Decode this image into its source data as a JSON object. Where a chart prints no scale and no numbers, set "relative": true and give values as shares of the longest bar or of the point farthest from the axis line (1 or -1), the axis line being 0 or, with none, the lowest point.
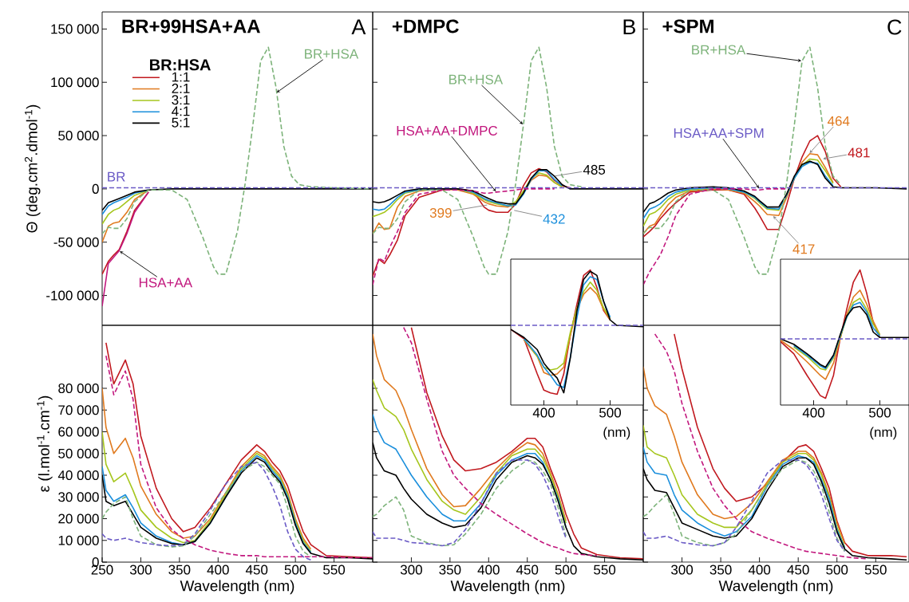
{
  "chart_data": [
    {
      "type": "line",
      "title": "BR+99HSA+AA",
      "ylabel": "Θ (deg.cm$^{2}$.dmol$^{-1}$)",
      "x": [
        250,
        258,
        265,
        272,
        282,
        292,
        310,
        340,
        360,
        380,
        394,
        400,
        410,
        425,
        435,
        445,
        455,
        465,
        475,
        485,
        495,
        505,
        520,
        550,
        600
      ],
      "xlim": [
        250,
        600
      ],
      "ylim": [
        -128000,
        166000
      ],
      "yticks": [
        {
          "value": -100000,
          "label": "-100 000"
        },
        {
          "value": -50000,
          "label": "-50 000"
        },
        0,
        {
          "value": 50000,
          "label": "50 000"
        },
        {
          "value": 100000,
          "label": "100 000"
        },
        {
          "value": 150000,
          "label": "150 000"
        }
      ],
      "tick_labels": "y",
      "legend": "top left",
      "legend_title": "BR:HSA",
      "line_style": "solid",
      "annotations": [
        "A",
        {
          "text": "BR",
          "x": 262,
          "y": 1000
        },
        {
          "text": "BR+HSA",
          "x": 475,
          "y": 90000
        },
        {
          "text": "HSA+AA",
          "x": 272,
          "y": -58000
        }
      ],
      "series": [
        {
          "name": "1:1",
          "color": "#c1191f",
          "values": [
            -80000,
            -68000,
            -62000,
            -57000,
            -40000,
            -20000,
            -3000,
            null,
            null,
            null,
            null,
            null,
            null,
            null,
            null,
            null,
            null,
            null,
            null,
            null,
            null,
            null,
            null,
            null,
            null
          ]
        },
        {
          "name": "2:1",
          "color": "#e07a1f",
          "values": [
            -50000,
            -35000,
            -32000,
            -31000,
            -22000,
            -10000,
            -1000,
            null,
            null,
            null,
            null,
            null,
            null,
            null,
            null,
            null,
            null,
            null,
            null,
            null,
            null,
            null,
            null,
            null,
            null
          ]
        },
        {
          "name": "3:1",
          "color": "#a6c61e",
          "values": [
            -33000,
            -24000,
            -20000,
            -18000,
            -12000,
            -6000,
            -1000,
            null,
            null,
            null,
            null,
            null,
            null,
            null,
            null,
            null,
            null,
            null,
            null,
            null,
            null,
            null,
            null,
            null,
            null
          ]
        },
        {
          "name": "4:1",
          "color": "#1b8fdc",
          "values": [
            -24000,
            -16000,
            -13000,
            -11000,
            -8000,
            -4000,
            -1000,
            null,
            null,
            null,
            null,
            null,
            null,
            null,
            null,
            null,
            null,
            null,
            null,
            null,
            null,
            null,
            null,
            null,
            null
          ]
        },
        {
          "name": "5:1",
          "color": "#000000",
          "values": [
            -20000,
            -13000,
            -11000,
            -9000,
            -6000,
            -3000,
            -1000,
            0,
            0,
            0,
            0,
            0,
            0,
            0,
            0,
            0,
            0,
            0,
            0,
            0,
            0,
            0,
            0,
            0,
            0
          ]
        },
        {
          "color": "#7db37a",
          "line_style": "dashed",
          "values": [
            -42000,
            -36000,
            -37000,
            -37000,
            -28000,
            -12000,
            -1000,
            -1000,
            -10000,
            -45000,
            -73000,
            -80000,
            -80000,
            -40000,
            5000,
            60000,
            120000,
            133000,
            95000,
            40000,
            12000,
            4000,
            2000,
            1000,
            0
          ]
        },
        {
          "color": "#6b5bc6",
          "line_style": "dashed",
          "values": [
            1000,
            1000,
            1000,
            1000,
            1000,
            1000,
            1000,
            1000,
            1000,
            1000,
            1000,
            1000,
            1000,
            1000,
            1000,
            1000,
            1000,
            1000,
            1000,
            1000,
            1000,
            1000,
            1000,
            1000,
            1000
          ]
        },
        {
          "color": "#c2187e",
          "values": [
            -110000,
            -70000,
            -64000,
            -58000,
            -42000,
            -22000,
            -3000,
            null,
            null,
            null,
            null,
            null,
            null,
            null,
            null,
            null,
            null,
            null,
            null,
            null,
            null,
            null,
            null,
            null,
            null
          ]
        }
      ]
    },
    {
      "type": "line",
      "title": "+DMPC",
      "x": [
        250,
        258,
        265,
        272,
        282,
        292,
        310,
        340,
        360,
        380,
        394,
        400,
        410,
        425,
        435,
        445,
        455,
        465,
        475,
        485,
        495,
        505,
        520,
        550,
        600
      ],
      "xlim": [
        250,
        600
      ],
      "ylim": [
        -128000,
        166000
      ],
      "yticks": [
        -100000,
        -50000,
        0,
        50000,
        100000,
        150000
      ],
      "tick_labels": false,
      "line_style": "solid",
      "annotations": [
        "B",
        {
          "text": "BR+HSA",
          "x": 445,
          "y": 60000
        },
        {
          "text": "HSA+AA+DMPC",
          "x": 410,
          "y": -3000
        },
        {
          "text": "399",
          "x": 399,
          "y": -15000
        },
        {
          "text": "432",
          "x": 432,
          "y": -20000
        },
        {
          "text": "485",
          "x": 485,
          "y": 12000
        }
      ],
      "series": [
        {
          "color": "#c1191f",
          "values": [
            -82000,
            -66000,
            -70000,
            -62000,
            -48000,
            -25000,
            -8000,
            -1000,
            0,
            -2000,
            -17000,
            -20000,
            -22000,
            -22000,
            -14000,
            3000,
            15000,
            19000,
            16000,
            8000,
            3000,
            1000,
            null,
            null,
            null
          ]
        },
        {
          "color": "#e07a1f",
          "values": [
            -42000,
            -32000,
            -38000,
            -37000,
            -17000,
            -7000,
            -2000,
            0,
            -1000,
            -5000,
            -12000,
            -14000,
            -16000,
            -17000,
            -14000,
            -4000,
            8000,
            13000,
            12000,
            6000,
            2000,
            null,
            null,
            null,
            null
          ]
        },
        {
          "color": "#a6c61e",
          "values": [
            -26000,
            -24000,
            -22000,
            -18000,
            -10000,
            -4000,
            -1000,
            0,
            0,
            -4000,
            -10000,
            -12000,
            -14000,
            -16000,
            -12000,
            -2000,
            10000,
            15000,
            13000,
            6000,
            2000,
            null,
            null,
            null,
            null
          ]
        },
        {
          "color": "#1b8fdc",
          "values": [
            -19000,
            -20000,
            -19000,
            -15000,
            -8000,
            -3000,
            -1000,
            0,
            0,
            -3000,
            -9000,
            -11000,
            -13000,
            -16000,
            -15000,
            -5000,
            9000,
            17000,
            17000,
            9000,
            3000,
            null,
            null,
            null,
            null
          ]
        },
        {
          "color": "#000000",
          "values": [
            -12000,
            -13000,
            -12000,
            -10000,
            -6000,
            -2000,
            0,
            0,
            0,
            -2000,
            -7000,
            -9000,
            -12000,
            -14000,
            -14000,
            -4000,
            10000,
            18000,
            18000,
            12000,
            4000,
            0,
            0,
            0,
            0
          ]
        },
        {
          "color": "#7db37a",
          "line_style": "dashed",
          "values": [
            -42000,
            -36000,
            -37000,
            -37000,
            -28000,
            -12000,
            -1000,
            -1000,
            -10000,
            -45000,
            -73000,
            -80000,
            -80000,
            -40000,
            5000,
            60000,
            120000,
            133000,
            95000,
            40000,
            12000,
            4000,
            2000,
            null,
            null
          ]
        },
        {
          "color": "#6b5bc6",
          "line_style": "dashed",
          "values": [
            1000,
            1000,
            1000,
            1000,
            1000,
            1000,
            1000,
            1000,
            1000,
            1000,
            1000,
            1000,
            1000,
            1000,
            1000,
            1000,
            1000,
            1000,
            1000,
            1000,
            1000,
            1000,
            1000,
            1000,
            1000
          ]
        },
        {
          "color": "#c2187e",
          "line_style": "dashed",
          "values": [
            -90000,
            -65000,
            -68000,
            -55000,
            -40000,
            -22000,
            -5000,
            -1000,
            -1000,
            -2000,
            -4000,
            -4000,
            -3000,
            -2000,
            -1000,
            0,
            0,
            0,
            0,
            0,
            null,
            null,
            null,
            null,
            null
          ]
        }
      ]
    },
    {
      "type": "line",
      "title": "+SPM",
      "x": [
        250,
        258,
        265,
        272,
        282,
        292,
        310,
        340,
        360,
        380,
        394,
        400,
        410,
        425,
        435,
        445,
        455,
        465,
        475,
        485,
        495,
        505,
        520,
        550,
        590
      ],
      "xlim": [
        250,
        593
      ],
      "ylim": [
        -128000,
        166000
      ],
      "yticks": [
        -100000,
        -50000,
        0,
        50000,
        100000,
        150000
      ],
      "tick_labels": false,
      "line_style": "solid",
      "annotations": [
        "C",
        {
          "text": "BR+HSA",
          "x": 455,
          "y": 120000
        },
        {
          "text": "HSA+AA+SPM",
          "x": 400,
          "y": 0
        },
        {
          "text": "464",
          "x": 464,
          "y": 33000
        },
        {
          "text": "481",
          "x": 481,
          "y": 28000
        },
        {
          "text": "417",
          "x": 417,
          "y": -25000
        }
      ],
      "series": [
        {
          "color": "#c1191f",
          "values": [
            -45000,
            -40000,
            -35000,
            -28000,
            -20000,
            -13000,
            -3000,
            -1000,
            -1000,
            -5000,
            -18000,
            -25000,
            -38000,
            -38000,
            -15000,
            10000,
            30000,
            45000,
            50000,
            35000,
            10000,
            2000,
            null,
            null,
            null
          ]
        },
        {
          "color": "#e07a1f",
          "values": [
            -42000,
            -35000,
            -33000,
            -25000,
            -15000,
            -8000,
            -2000,
            0,
            -1000,
            -4000,
            -12000,
            -16000,
            -24000,
            -25000,
            -8000,
            10000,
            25000,
            33000,
            32000,
            20000,
            6000,
            null,
            null,
            null,
            null
          ]
        },
        {
          "color": "#a6c61e",
          "values": [
            -35000,
            -24000,
            -22000,
            -18000,
            -10000,
            -5000,
            -1000,
            1000,
            0,
            -3000,
            -9000,
            -13000,
            -19000,
            -20000,
            -6000,
            10000,
            22000,
            28000,
            27000,
            17000,
            5000,
            null,
            null,
            null,
            null
          ]
        },
        {
          "color": "#1b8fdc",
          "values": [
            -28000,
            -19000,
            -17000,
            -14000,
            -7000,
            -3000,
            0,
            1000,
            0,
            -3000,
            -8000,
            -12000,
            -18000,
            -19000,
            -6000,
            10000,
            21000,
            25000,
            24000,
            12000,
            3000,
            null,
            null,
            null,
            null
          ]
        },
        {
          "color": "#000000",
          "values": [
            -22000,
            -14000,
            -12000,
            -9000,
            -4000,
            -1000,
            1000,
            2000,
            1000,
            -2000,
            -7000,
            -11000,
            -17000,
            -17000,
            -5000,
            12000,
            23000,
            26000,
            23000,
            10000,
            2000,
            1000,
            1000,
            1000,
            0
          ]
        },
        {
          "color": "#7db37a",
          "line_style": "dashed",
          "values": [
            -42000,
            -36000,
            -37000,
            -37000,
            -28000,
            -12000,
            -1000,
            -1000,
            -10000,
            -45000,
            -73000,
            -80000,
            -80000,
            -40000,
            5000,
            60000,
            120000,
            133000,
            95000,
            40000,
            12000,
            4000,
            null,
            null,
            null
          ]
        },
        {
          "color": "#6b5bc6",
          "line_style": "dashed",
          "values": [
            1000,
            1000,
            1000,
            1000,
            1000,
            1000,
            1000,
            1000,
            1000,
            1000,
            1000,
            1000,
            1000,
            1000,
            1000,
            1000,
            1000,
            1000,
            1000,
            1000,
            1000,
            1000,
            1000,
            1000,
            1000
          ]
        },
        {
          "color": "#c2187e",
          "line_style": "dashed",
          "values": [
            -90000,
            -78000,
            -70000,
            -62000,
            -45000,
            -25000,
            -5000,
            0,
            0,
            0,
            -1000,
            -1000,
            0,
            0,
            0,
            null,
            null,
            null,
            null,
            null,
            null,
            null,
            null,
            null,
            null
          ]
        }
      ]
    },
    {
      "type": "line",
      "xlabel": "Wavelength (nm)",
      "ylabel": "ε (l.mol$^{-1}$.cm$^{-1}$)",
      "x": [
        250,
        255,
        265,
        280,
        290,
        300,
        320,
        340,
        355,
        370,
        390,
        410,
        430,
        450,
        460,
        470,
        480,
        490,
        500,
        510,
        520,
        540,
        570,
        600
      ],
      "xlim": [
        250,
        600
      ],
      "ylim": [
        0,
        109000
      ],
      "xticks": [
        250,
        300,
        350,
        400,
        450,
        500,
        550
      ],
      "yticks": [
        0,
        {
          "value": 10000,
          "label": "10 000"
        },
        {
          "value": 20000,
          "label": "20 000"
        },
        {
          "value": 30000,
          "label": "30 000"
        },
        {
          "value": 40000,
          "label": "40 000"
        },
        {
          "value": 50000,
          "label": "50 000"
        },
        {
          "value": 60000,
          "label": "60 000"
        },
        {
          "value": 70000,
          "label": "70 000"
        },
        {
          "value": 80000,
          "label": "80 000"
        }
      ],
      "line_style": "solid",
      "series": [
        {
          "color": "#c1191f",
          "values": [
            null,
            101000,
            82000,
            93000,
            82000,
            58000,
            34000,
            20000,
            14000,
            16000,
            25000,
            36000,
            47000,
            54000,
            51000,
            46000,
            42000,
            35000,
            24000,
            14000,
            8000,
            3000,
            2500,
            2000
          ]
        },
        {
          "color": "#e07a1f",
          "values": [
            80000,
            62000,
            50000,
            57000,
            48000,
            35000,
            22000,
            14000,
            11000,
            12000,
            20000,
            32000,
            44000,
            51000,
            49000,
            44000,
            40000,
            32000,
            20000,
            11000,
            6000,
            null,
            null,
            null
          ]
        },
        {
          "color": "#a6c61e",
          "values": [
            60000,
            45000,
            37000,
            41000,
            33000,
            24000,
            16000,
            11000,
            9000,
            10000,
            19000,
            31000,
            43000,
            50000,
            48000,
            43000,
            39000,
            31000,
            19000,
            10000,
            5000,
            null,
            null,
            null
          ]
        },
        {
          "color": "#1b8fdc",
          "values": [
            44000,
            33000,
            28000,
            31000,
            25000,
            18000,
            12000,
            9000,
            8000,
            9500,
            18000,
            30000,
            42000,
            49000,
            47000,
            42000,
            38000,
            30000,
            18000,
            9000,
            4500,
            null,
            null,
            null
          ]
        },
        {
          "color": "#000000",
          "values": [
            40000,
            28000,
            26000,
            28000,
            22000,
            16000,
            11000,
            8500,
            8000,
            9500,
            18000,
            30000,
            41000,
            48000,
            46000,
            41000,
            37000,
            29000,
            17000,
            8500,
            4000,
            2000,
            2000,
            1500
          ]
        },
        {
          "color": "#7db37a",
          "line_style": "dashed",
          "values": [
            20000,
            23000,
            27000,
            30000,
            20000,
            12000,
            8000,
            7000,
            7500,
            12000,
            22000,
            32000,
            42000,
            46000,
            44000,
            40000,
            36000,
            25000,
            12000,
            5000,
            2500,
            null,
            null,
            null
          ]
        },
        {
          "color": "#6b5bc6",
          "line_style": "dashed",
          "values": [
            13000,
            11000,
            10000,
            11000,
            10000,
            9000,
            8000,
            7500,
            8000,
            13000,
            24000,
            36000,
            44000,
            46000,
            42000,
            35000,
            26000,
            14000,
            6000,
            2500,
            1000,
            null,
            null,
            null
          ]
        },
        {
          "color": "#c2187e",
          "line_style": "dashed",
          "values": [
            null,
            95000,
            77000,
            88000,
            75000,
            45000,
            25000,
            15000,
            11000,
            8000,
            5500,
            4000,
            3000,
            3000,
            2500,
            2500,
            2500,
            2500,
            2500,
            2500,
            2500,
            2500,
            2000,
            2000
          ]
        }
      ]
    },
    {
      "type": "line",
      "xlabel": "Wavelength (nm)",
      "x": [
        250,
        255,
        265,
        280,
        290,
        300,
        320,
        340,
        355,
        370,
        390,
        410,
        430,
        450,
        460,
        470,
        480,
        490,
        500,
        510,
        520,
        540,
        570,
        600
      ],
      "xlim": [
        250,
        600
      ],
      "ylim": [
        0,
        109000
      ],
      "xticks": [
        300,
        350,
        400,
        450,
        500,
        550
      ],
      "yticks": [
        0,
        10000,
        20000,
        30000,
        40000,
        50000,
        60000,
        70000,
        80000
      ],
      "tick_labels": "x",
      "line_style": "solid",
      "series": [
        {
          "color": "#c1191f",
          "values": [
            null,
            null,
            null,
            null,
            null,
            108000,
            78000,
            58000,
            47000,
            42000,
            43000,
            46000,
            51000,
            57000,
            57000,
            53000,
            43000,
            34000,
            22000,
            13000,
            6500,
            3500,
            2000,
            1500
          ]
        },
        {
          "color": "#e07a1f",
          "values": [
            105000,
            95000,
            84000,
            79000,
            71000,
            61000,
            43000,
            31000,
            25500,
            26000,
            34000,
            43000,
            50000,
            55000,
            54000,
            50000,
            41000,
            31000,
            19000,
            null,
            null,
            null,
            null,
            null
          ]
        },
        {
          "color": "#a6c61e",
          "values": [
            84000,
            79000,
            71000,
            67000,
            61000,
            52000,
            38000,
            28000,
            24000,
            22000,
            30000,
            41000,
            49000,
            52000,
            52000,
            48000,
            40000,
            30000,
            18000,
            null,
            null,
            null,
            null,
            null
          ]
        },
        {
          "color": "#1b8fdc",
          "values": [
            68000,
            62000,
            55000,
            52000,
            46000,
            40000,
            30000,
            22000,
            19000,
            19000,
            27000,
            40000,
            47000,
            50000,
            50000,
            46000,
            38000,
            29000,
            16000,
            null,
            null,
            null,
            null,
            null
          ]
        },
        {
          "color": "#000000",
          "values": [
            55000,
            48000,
            42000,
            40000,
            34000,
            29000,
            22000,
            18000,
            16000,
            17000,
            25000,
            38000,
            46000,
            49000,
            48000,
            45000,
            38000,
            28000,
            16000,
            7500,
            4000,
            2500,
            1500,
            1000
          ]
        },
        {
          "color": "#7db37a",
          "line_style": "dashed",
          "values": [
            21000,
            22000,
            26000,
            30000,
            24000,
            12000,
            9000,
            7500,
            8000,
            13000,
            22000,
            34000,
            42000,
            47000,
            46000,
            42000,
            36000,
            25000,
            12000,
            null,
            null,
            null,
            null,
            null
          ]
        },
        {
          "color": "#6b5bc6",
          "line_style": "dashed",
          "values": [
            14000,
            11000,
            11000,
            11000,
            10000,
            9000,
            8500,
            7500,
            9000,
            15000,
            27000,
            41000,
            47000,
            47000,
            45000,
            40000,
            32000,
            21000,
            11000,
            null,
            null,
            null,
            null,
            null
          ]
        },
        {
          "color": "#c2187e",
          "line_style": "dashed",
          "values": [
            null,
            null,
            null,
            null,
            108000,
            101000,
            75000,
            51000,
            40000,
            34000,
            27000,
            22000,
            17500,
            13000,
            11000,
            9000,
            7500,
            6500,
            5000,
            4000,
            3500,
            3000,
            null,
            null
          ]
        }
      ]
    },
    {
      "type": "line",
      "xlabel": "Wavelength (nm)",
      "x": [
        250,
        255,
        265,
        280,
        290,
        300,
        320,
        340,
        355,
        370,
        390,
        410,
        430,
        450,
        460,
        470,
        480,
        490,
        500,
        510,
        520,
        540,
        570,
        590
      ],
      "xlim": [
        250,
        593
      ],
      "ylim": [
        0,
        109000
      ],
      "xticks": [
        300,
        350,
        400,
        450,
        500,
        550
      ],
      "yticks": [
        0,
        10000,
        20000,
        30000,
        40000,
        50000,
        60000,
        70000,
        80000
      ],
      "tick_labels": "x",
      "line_style": "solid",
      "series": [
        {
          "color": "#c1191f",
          "values": [
            null,
            null,
            null,
            null,
            105000,
            89000,
            62000,
            43000,
            34000,
            28000,
            30000,
            36000,
            46000,
            53000,
            54000,
            51000,
            43000,
            34000,
            19000,
            9000,
            5000,
            3000,
            3000,
            2500
          ]
        },
        {
          "color": "#e07a1f",
          "values": [
            90000,
            80000,
            72000,
            68000,
            58000,
            46000,
            31000,
            22000,
            20000,
            21000,
            27000,
            37000,
            47000,
            51000,
            51000,
            48000,
            41000,
            31000,
            18000,
            8500,
            null,
            null,
            null,
            null
          ]
        },
        {
          "color": "#a6c61e",
          "values": [
            63000,
            53000,
            50000,
            48000,
            40000,
            31000,
            22000,
            18000,
            16000,
            16000,
            24000,
            36000,
            46000,
            50000,
            50000,
            47000,
            40000,
            30000,
            16000,
            7000,
            null,
            null,
            null,
            null
          ]
        },
        {
          "color": "#1b8fdc",
          "values": [
            53000,
            46000,
            41000,
            40000,
            31000,
            24000,
            18000,
            14000,
            12000,
            14000,
            21000,
            35000,
            45000,
            49000,
            48000,
            46000,
            38000,
            29000,
            15000,
            6500,
            null,
            null,
            null,
            null
          ]
        },
        {
          "color": "#000000",
          "values": [
            43000,
            38000,
            33000,
            32000,
            25000,
            18000,
            15000,
            12000,
            11000,
            12000,
            20000,
            33000,
            44000,
            48000,
            48000,
            45000,
            37000,
            27000,
            14000,
            6000,
            3000,
            2000,
            1500,
            1000
          ]
        },
        {
          "color": "#7db37a",
          "line_style": "dashed",
          "values": [
            21000,
            22000,
            26000,
            31000,
            22000,
            12000,
            9000,
            7500,
            9000,
            13000,
            24000,
            35000,
            43000,
            47000,
            46000,
            42000,
            35000,
            23000,
            11000,
            5000,
            null,
            null,
            null,
            null
          ]
        },
        {
          "color": "#6b5bc6",
          "line_style": "dashed",
          "values": [
            14000,
            11000,
            11000,
            12000,
            10500,
            9000,
            8000,
            7500,
            9000,
            16000,
            28000,
            41000,
            47000,
            47000,
            45000,
            40000,
            31000,
            20000,
            10000,
            5000,
            null,
            null,
            null,
            null
          ]
        },
        {
          "color": "#c2187e",
          "line_style": "dashed",
          "values": [
            null,
            null,
            105000,
            97000,
            88000,
            73000,
            51000,
            34000,
            26000,
            20000,
            14000,
            11000,
            8500,
            6000,
            5000,
            4500,
            4000,
            3500,
            3000,
            2500,
            2000,
            1500,
            null,
            null
          ]
        }
      ]
    },
    {
      "type": "line",
      "relative": true,
      "xlabel": "(nm)",
      "x": [
        350,
        370,
        390,
        400,
        410,
        420,
        430,
        440,
        450,
        460,
        470,
        480,
        490,
        500,
        510,
        550
      ],
      "xlim": [
        350,
        550
      ],
      "xticks": [
        400,
        {
          "value": 450,
          "label": null
        },
        500
      ],
      "tick_labels": "x",
      "line_style": "solid",
      "series": [
        {
          "color": "#c1191f",
          "values": [
            0.56,
            0.49,
            0.23,
            0.11,
            0.09,
            0.08,
            0.23,
            0.52,
            0.75,
            0.96,
            1.0,
            0.87,
            0.7,
            0.63,
            null,
            null
          ]
        },
        {
          "color": "#e07a1f",
          "values": [
            null,
            0.48,
            0.36,
            0.24,
            0.22,
            0.23,
            0.28,
            0.52,
            0.71,
            0.82,
            0.87,
            0.82,
            0.71,
            0.63,
            null,
            null
          ]
        },
        {
          "color": "#a6c61e",
          "values": [
            null,
            0.49,
            0.36,
            0.28,
            0.26,
            0.27,
            0.31,
            0.54,
            0.72,
            0.84,
            0.91,
            0.85,
            0.72,
            0.64,
            null,
            null
          ]
        },
        {
          "color": "#1b8fdc",
          "values": [
            null,
            0.49,
            0.37,
            0.28,
            0.22,
            0.15,
            0.13,
            0.36,
            0.65,
            0.89,
            0.95,
            0.93,
            0.77,
            0.65,
            null,
            null
          ]
        },
        {
          "color": "#000000",
          "values": [
            0.56,
            0.5,
            0.41,
            0.31,
            0.25,
            0.2,
            0.09,
            0.35,
            0.7,
            0.93,
            0.99,
            0.96,
            0.77,
            0.63,
            0.59,
            0.58
          ]
        },
        {
          "color": "#6b5bc6",
          "line_style": "dashed",
          "values": [
            0.59,
            0.59,
            0.59,
            0.59,
            0.59,
            0.59,
            0.59,
            0.59,
            0.59,
            0.59,
            0.59,
            0.59,
            0.59,
            0.59,
            0.59,
            0.59
          ]
        }
      ]
    },
    {
      "type": "line",
      "relative": true,
      "xlabel": "(nm)",
      "x": [
        350,
        370,
        390,
        410,
        418,
        430,
        440,
        450,
        460,
        470,
        480,
        490,
        500,
        510,
        544
      ],
      "xlim": [
        350,
        544
      ],
      "xticks": [
        400,
        {
          "value": 450,
          "label": null
        },
        500
      ],
      "tick_labels": "x",
      "line_style": "solid",
      "series": [
        {
          "color": "#c1191f",
          "values": [
            0.47,
            0.38,
            0.22,
            0.07,
            0.05,
            0.22,
            0.49,
            0.71,
            0.91,
            1.0,
            0.83,
            0.61,
            0.5,
            null,
            null
          ]
        },
        {
          "color": "#e07a1f",
          "values": [
            0.48,
            0.41,
            0.32,
            0.22,
            0.19,
            0.31,
            0.49,
            0.67,
            0.8,
            0.85,
            0.75,
            0.62,
            0.52,
            null,
            null
          ]
        },
        {
          "color": "#a6c61e",
          "values": [
            null,
            0.43,
            0.36,
            0.27,
            0.26,
            0.35,
            0.5,
            0.65,
            0.76,
            0.79,
            0.71,
            0.6,
            0.52,
            null,
            null
          ]
        },
        {
          "color": "#1b8fdc",
          "values": [
            null,
            0.44,
            0.37,
            0.29,
            0.27,
            0.36,
            0.51,
            0.65,
            0.74,
            0.76,
            0.69,
            0.57,
            0.51,
            null,
            null
          ]
        },
        {
          "color": "#000000",
          "values": [
            0.49,
            0.45,
            0.38,
            0.3,
            0.28,
            0.37,
            0.52,
            0.66,
            0.72,
            0.73,
            0.67,
            0.54,
            0.5,
            0.5,
            0.5
          ]
        },
        {
          "color": "#6b5bc6",
          "line_style": "dashed",
          "values": [
            0.49,
            0.49,
            0.49,
            0.49,
            0.49,
            0.49,
            0.49,
            0.49,
            0.49,
            0.49,
            0.49,
            0.49,
            0.49,
            0.49,
            0.49
          ]
        }
      ]
    }
  ]
}
